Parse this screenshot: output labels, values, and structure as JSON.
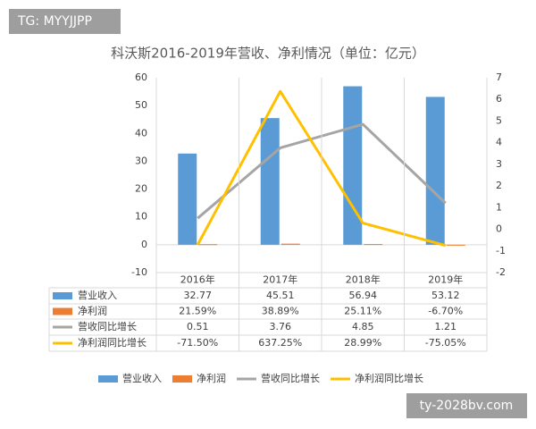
{
  "watermarks": [
    "TG: MYYJJPP",
    "ty-2028bv.com"
  ],
  "chart_data": {
    "type": "bar",
    "title": "科沃斯2016-2019年营收、净利情况（单位：亿元）",
    "categories": [
      "2016年",
      "2017年",
      "2018年",
      "2019年"
    ],
    "ylim": [
      -10,
      60
    ],
    "yticks": [
      -10,
      0,
      10,
      20,
      30,
      40,
      50,
      60
    ],
    "y2lim": [
      -2,
      7
    ],
    "y2ticks": [
      -2,
      -1,
      0,
      1,
      2,
      3,
      4,
      5,
      6,
      7
    ],
    "grid": false,
    "legend": "bottom",
    "series": [
      {
        "name": "营业收入",
        "type": "bar",
        "color": "#5b9bd5",
        "values": [
          32.77,
          45.51,
          56.94,
          53.12
        ]
      },
      {
        "name": "净利润",
        "type": "bar",
        "color": "#ed7d31",
        "values": [
          0.2159,
          0.3889,
          0.2511,
          -0.067
        ],
        "value_labels": [
          "21.59%",
          "38.89%",
          "25.11%",
          "-6.70%"
        ]
      },
      {
        "name": "营收同比增长",
        "type": "line",
        "axis": "y2",
        "color": "#a5a5a5",
        "values": [
          0.51,
          3.76,
          4.85,
          1.21
        ]
      },
      {
        "name": "净利润同比增长",
        "type": "line",
        "axis": "y2",
        "color": "#ffc000",
        "values": [
          -0.715,
          6.3725,
          0.2899,
          -0.7505
        ],
        "value_labels": [
          "-71.50%",
          "637.25%",
          "28.99%",
          "-75.05%"
        ]
      }
    ]
  }
}
